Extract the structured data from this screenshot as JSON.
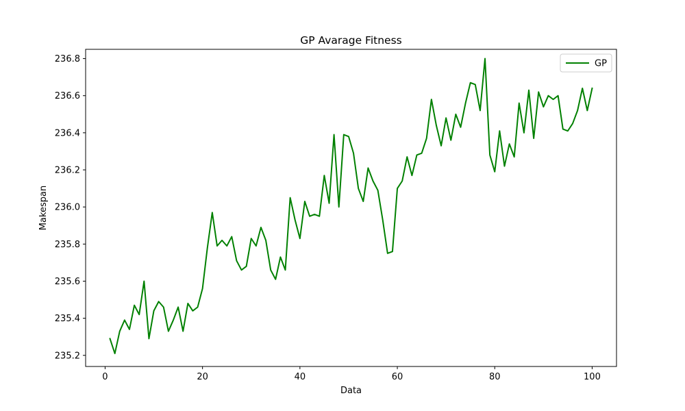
{
  "chart_data": {
    "type": "line",
    "title": "GP Avarage Fitness",
    "xlabel": "Data",
    "ylabel": "Makespan",
    "xlim": [
      -4.0,
      105.0
    ],
    "ylim": [
      235.14,
      236.85
    ],
    "xticks": [
      0,
      20,
      40,
      60,
      80,
      100
    ],
    "yticks": [
      235.2,
      235.4,
      235.6,
      235.8,
      236.0,
      236.2,
      236.4,
      236.6,
      236.8
    ],
    "xtick_labels": [
      "0",
      "20",
      "40",
      "60",
      "80",
      "100"
    ],
    "ytick_labels": [
      "235.2",
      "235.4",
      "235.6",
      "235.8",
      "236.0",
      "236.2",
      "236.4",
      "236.6",
      "236.8"
    ],
    "grid": false,
    "legend": {
      "position": "top-right",
      "entries": [
        "GP"
      ]
    },
    "series": [
      {
        "name": "GP",
        "color": "#008000",
        "x": [
          1,
          2,
          3,
          4,
          5,
          6,
          7,
          8,
          9,
          10,
          11,
          12,
          13,
          14,
          15,
          16,
          17,
          18,
          19,
          20,
          21,
          22,
          23,
          24,
          25,
          26,
          27,
          28,
          29,
          30,
          31,
          32,
          33,
          34,
          35,
          36,
          37,
          38,
          39,
          40,
          41,
          42,
          43,
          44,
          45,
          46,
          47,
          48,
          49,
          50,
          51,
          52,
          53,
          54,
          55,
          56,
          57,
          58,
          59,
          60,
          61,
          62,
          63,
          64,
          65,
          66,
          67,
          68,
          69,
          70,
          71,
          72,
          73,
          74,
          75,
          76,
          77,
          78,
          79,
          80,
          81,
          82,
          83,
          84,
          85,
          86,
          87,
          88,
          89,
          90,
          91,
          92,
          93,
          94,
          95,
          96,
          97,
          98,
          99,
          100
        ],
        "values": [
          235.29,
          235.21,
          235.33,
          235.39,
          235.34,
          235.47,
          235.42,
          235.6,
          235.29,
          235.44,
          235.49,
          235.46,
          235.33,
          235.39,
          235.46,
          235.33,
          235.48,
          235.44,
          235.46,
          235.56,
          235.78,
          235.97,
          235.79,
          235.82,
          235.79,
          235.84,
          235.71,
          235.66,
          235.68,
          235.83,
          235.79,
          235.89,
          235.82,
          235.66,
          235.61,
          235.73,
          235.66,
          236.05,
          235.93,
          235.83,
          236.03,
          235.95,
          235.96,
          235.95,
          236.17,
          236.02,
          236.39,
          236.0,
          236.39,
          236.38,
          236.29,
          236.1,
          236.03,
          236.21,
          236.14,
          236.09,
          235.93,
          235.75,
          235.76,
          236.1,
          236.14,
          236.27,
          236.17,
          236.28,
          236.29,
          236.37,
          236.58,
          236.44,
          236.33,
          236.48,
          236.36,
          236.5,
          236.43,
          236.56,
          236.67,
          236.66,
          236.52,
          236.8,
          236.28,
          236.19,
          236.41,
          236.22,
          236.34,
          236.27,
          236.56,
          236.4,
          236.63,
          236.37,
          236.62,
          236.54,
          236.6,
          236.58,
          236.6,
          236.42,
          236.41,
          236.45,
          236.52,
          236.64,
          236.52,
          236.64
        ]
      }
    ]
  }
}
